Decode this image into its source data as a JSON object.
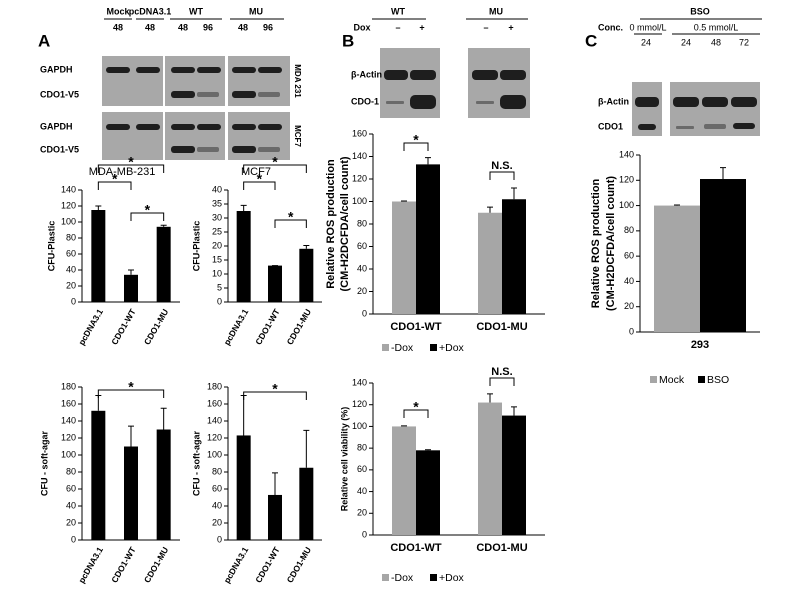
{
  "figure": {
    "panels": [
      "A",
      "B",
      "C"
    ],
    "blots": [
      {
        "groups": [
          {
            "name": "Mock",
            "lanes": [
              "48"
            ]
          },
          {
            "name": "pcDNA3.1",
            "lanes": [
              "48"
            ]
          },
          {
            "name": "WT",
            "lanes": [
              "48",
              "96"
            ]
          },
          {
            "name": "MU",
            "lanes": [
              "48",
              "96"
            ]
          }
        ],
        "rows": [
          "GAPDH",
          "CDO1-V5",
          "GAPDH",
          "CDO1-V5"
        ],
        "cells": [
          "MDA 231",
          "MCF7"
        ]
      },
      {
        "condition": "Dox",
        "groups": [
          {
            "name": "WT",
            "lanes": [
              "–",
              "+"
            ]
          },
          {
            "name": "MU",
            "lanes": [
              "–",
              "+"
            ]
          }
        ],
        "rows": [
          "β-Actin",
          "CDO-1"
        ]
      },
      {
        "treatment": "BSO",
        "condition": "Conc.",
        "groups": [
          {
            "name": "0 mmol/L",
            "lanes": [
              "24"
            ]
          },
          {
            "name": "0.5 mmol/L",
            "lanes": [
              "24",
              "48",
              "72"
            ]
          }
        ],
        "rows": [
          "β-Actin",
          "CDO1"
        ]
      }
    ]
  },
  "chart_data": [
    {
      "type": "bar",
      "title": "MDA-MB-231",
      "ylabel": "CFU-Plastic",
      "categories": [
        "pcDNA3.1",
        "CDO1-WT",
        "CDO1-MU"
      ],
      "values": [
        115,
        34,
        94
      ],
      "errors": [
        5,
        6,
        2
      ],
      "color": "#000000",
      "ylim": [
        0,
        140
      ],
      "yticks": [
        0,
        20,
        40,
        60,
        80,
        100,
        120,
        140
      ],
      "annotations": [
        "*",
        "*",
        "*"
      ]
    },
    {
      "type": "bar",
      "title": "MCF7",
      "ylabel": "CFU-Plastic",
      "categories": [
        "pcDNA3.1",
        "CDO1-WT",
        "CDO1-MU"
      ],
      "values": [
        32.5,
        13,
        19
      ],
      "errors": [
        2,
        0,
        1.2
      ],
      "color": "#000000",
      "ylim": [
        0,
        40
      ],
      "yticks": [
        0,
        5,
        10,
        15,
        20,
        25,
        30,
        35,
        40
      ],
      "annotations": [
        "*",
        "*",
        "*"
      ]
    },
    {
      "type": "bar",
      "ylabel": "CFU - soft-agar",
      "categories": [
        "pcDNA3.1",
        "CDO1-WT",
        "CDO1-MU"
      ],
      "values": [
        152,
        110,
        130
      ],
      "errors": [
        18,
        24,
        25
      ],
      "color": "#000000",
      "ylim": [
        0,
        180
      ],
      "yticks": [
        0,
        20,
        40,
        60,
        80,
        100,
        120,
        140,
        160,
        180
      ],
      "annotations": [
        "*"
      ]
    },
    {
      "type": "bar",
      "ylabel": "CFU - soft-agar",
      "categories": [
        "pcDNA3.1",
        "CDO1-WT",
        "CDO1-MU"
      ],
      "values": [
        123,
        53,
        85
      ],
      "errors": [
        47,
        26,
        44
      ],
      "color": "#000000",
      "ylim": [
        0,
        180
      ],
      "yticks": [
        0,
        20,
        40,
        60,
        80,
        100,
        120,
        140,
        160,
        180
      ],
      "annotations": [
        "*"
      ]
    },
    {
      "type": "bar",
      "ylabel": [
        "Relative ROS production",
        "(CM-H2DCFDA/cell count)"
      ],
      "categories": [
        "CDO1-WT",
        "CDO1-MU"
      ],
      "series": [
        {
          "name": "-Dox",
          "color": "#a6a6a6",
          "values": [
            100,
            90
          ],
          "errors": [
            0.5,
            5
          ]
        },
        {
          "name": "+Dox",
          "color": "#000000",
          "values": [
            133,
            102
          ],
          "errors": [
            6,
            10
          ]
        }
      ],
      "ylim": [
        0,
        160
      ],
      "yticks": [
        0,
        20,
        40,
        60,
        80,
        100,
        120,
        140,
        160
      ],
      "annotations": [
        "*",
        "N.S."
      ],
      "legend": "bottom"
    },
    {
      "type": "bar",
      "ylabel": "Relative cell viability (%)",
      "categories": [
        "CDO1-WT",
        "CDO1-MU"
      ],
      "series": [
        {
          "name": "-Dox",
          "color": "#a6a6a6",
          "values": [
            100,
            122
          ],
          "errors": [
            0.5,
            8
          ]
        },
        {
          "name": "+Dox",
          "color": "#000000",
          "values": [
            78,
            110
          ],
          "errors": [
            0.5,
            8
          ]
        }
      ],
      "ylim": [
        0,
        140
      ],
      "yticks": [
        0,
        20,
        40,
        60,
        80,
        100,
        120,
        140
      ],
      "annotations": [
        "*",
        "N.S."
      ],
      "legend": "bottom"
    },
    {
      "type": "bar",
      "ylabel": [
        "Relative ROS production",
        "(CM-H2DCFDA/cell count)"
      ],
      "categories": [
        "293"
      ],
      "series": [
        {
          "name": "Mock",
          "color": "#a6a6a6",
          "values": [
            100
          ],
          "errors": [
            0.5
          ]
        },
        {
          "name": "BSO",
          "color": "#000000",
          "values": [
            121
          ],
          "errors": [
            9
          ]
        }
      ],
      "ylim": [
        0,
        140
      ],
      "yticks": [
        0,
        20,
        40,
        60,
        80,
        100,
        120,
        140
      ],
      "legend": "bottom"
    }
  ]
}
